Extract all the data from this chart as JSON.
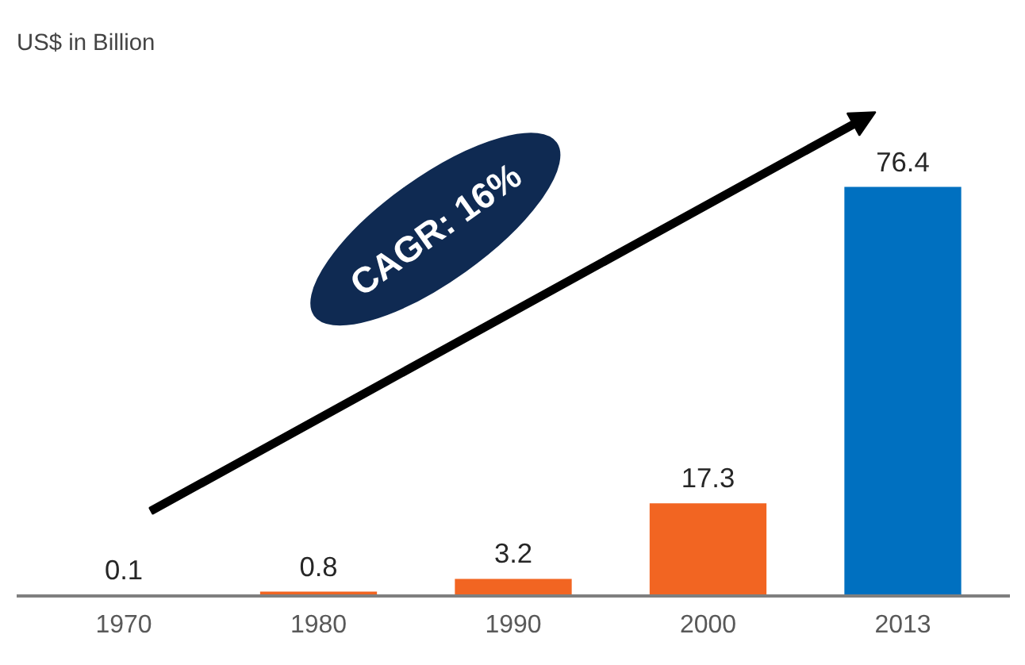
{
  "chart_data": {
    "type": "bar",
    "categories": [
      "1970",
      "1980",
      "1990",
      "2000",
      "2013"
    ],
    "values": [
      0.1,
      0.8,
      3.2,
      17.3,
      76.4
    ],
    "colors": [
      "#f26522",
      "#f26522",
      "#f26522",
      "#f26522",
      "#0070c0"
    ],
    "data_labels": true,
    "tick_labels": "x",
    "grid": false,
    "annotations": [
      "US$ in Billion",
      "CAGR: 16%"
    ]
  }
}
